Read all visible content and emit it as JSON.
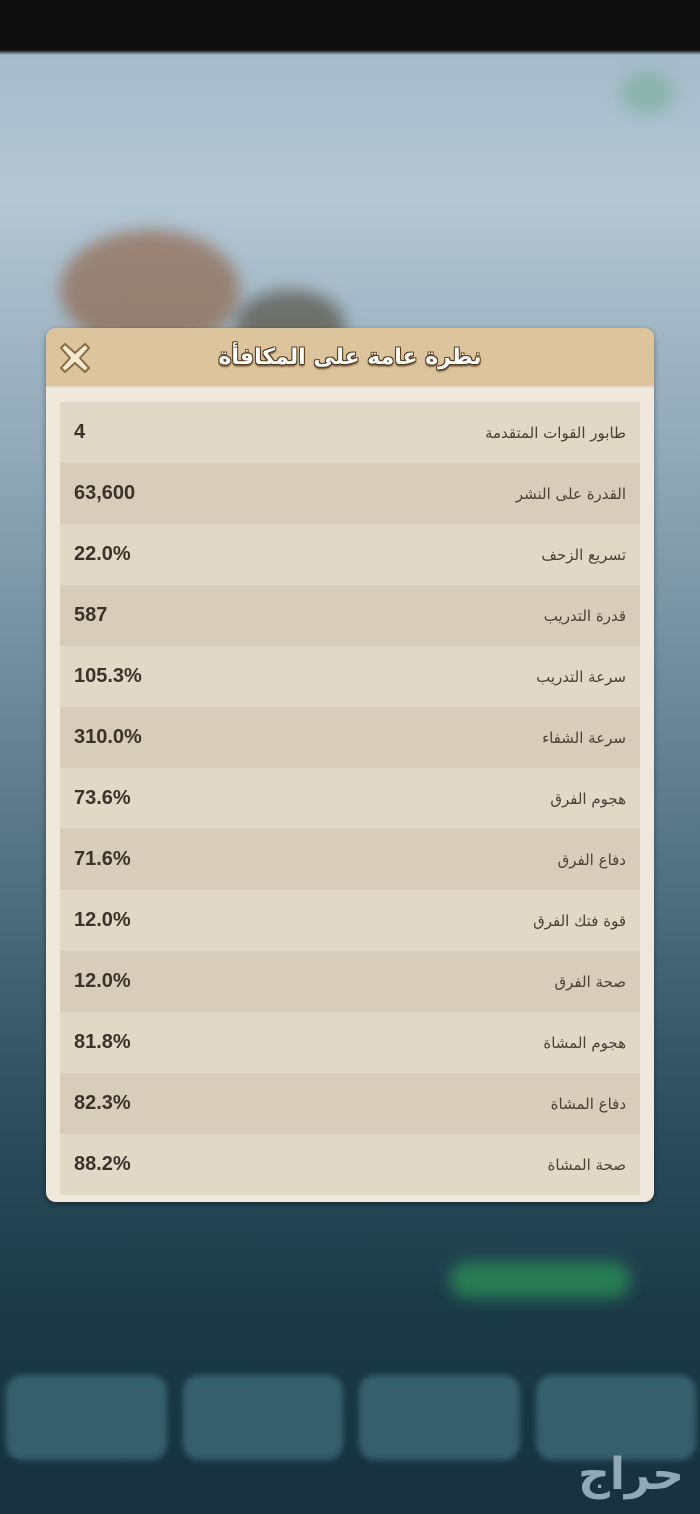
{
  "dialog": {
    "title": "نظرة عامة على المكافأة",
    "close_icon": "close-x-icon",
    "rows": [
      {
        "label": "طابور القوات المتقدمة",
        "value": "4"
      },
      {
        "label": "القدرة على النشر",
        "value": "63,600"
      },
      {
        "label": "تسريع الزحف",
        "value": "22.0%"
      },
      {
        "label": "قدرة التدريب",
        "value": "587"
      },
      {
        "label": "سرعة التدريب",
        "value": "105.3%"
      },
      {
        "label": "سرعة الشفاء",
        "value": "310.0%"
      },
      {
        "label": "هجوم الفرق",
        "value": "73.6%"
      },
      {
        "label": "دفاع الفرق",
        "value": "71.6%"
      },
      {
        "label": "قوة فتك الفرق",
        "value": "12.0%"
      },
      {
        "label": "صحة الفرق",
        "value": "12.0%"
      },
      {
        "label": "هجوم المشاة",
        "value": "81.8%"
      },
      {
        "label": "دفاع المشاة",
        "value": "82.3%"
      },
      {
        "label": "صحة المشاة",
        "value": "88.2%"
      }
    ]
  },
  "watermark": "حراج",
  "colors": {
    "header": "#dcc49c",
    "row_light": "#e1d8c8",
    "row_dark": "#d8cdba"
  }
}
